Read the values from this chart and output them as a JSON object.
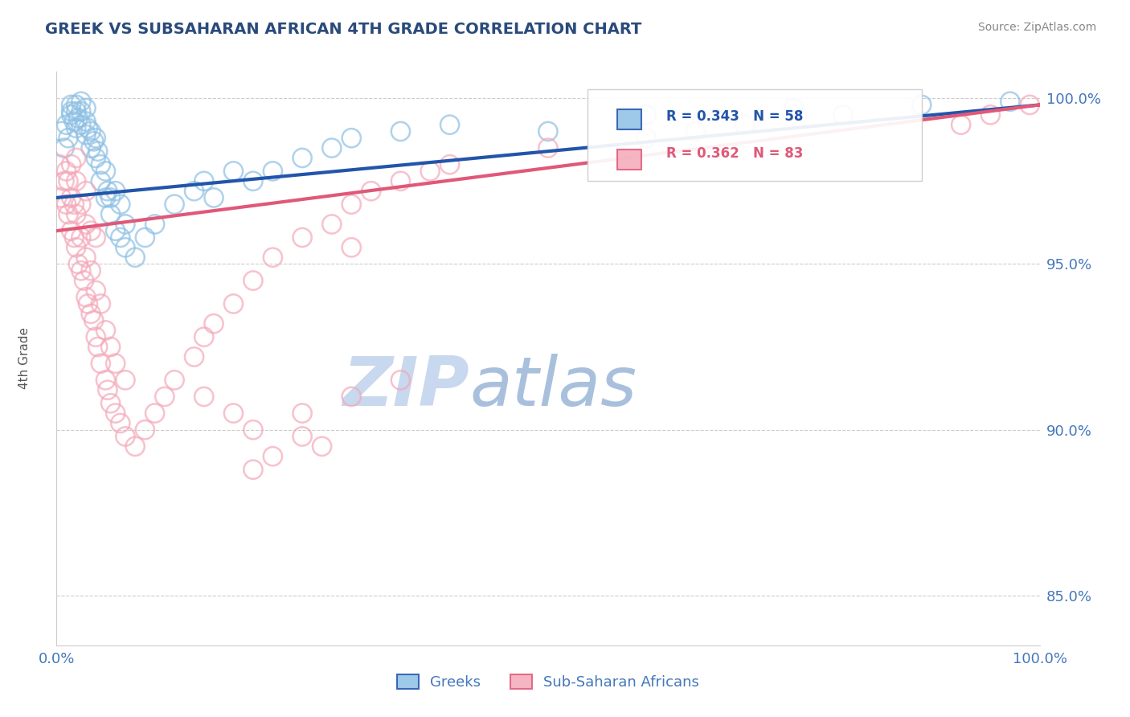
{
  "title": "GREEK VS SUBSAHARAN AFRICAN 4TH GRADE CORRELATION CHART",
  "ylabel": "4th Grade",
  "source": "Source: ZipAtlas.com",
  "xlim": [
    0.0,
    1.0
  ],
  "ylim": [
    0.835,
    1.008
  ],
  "yticks": [
    0.85,
    0.9,
    0.95,
    1.0
  ],
  "ytick_labels": [
    "85.0%",
    "90.0%",
    "95.0%",
    "100.0%"
  ],
  "xticks": [
    0.0,
    1.0
  ],
  "xtick_labels": [
    "0.0%",
    "100.0%"
  ],
  "blue_R": 0.343,
  "blue_N": 58,
  "pink_R": 0.362,
  "pink_N": 83,
  "blue_color": "#8ec0e4",
  "pink_color": "#f4a8b8",
  "blue_line_color": "#2255aa",
  "pink_line_color": "#e05878",
  "title_color": "#2a4a7a",
  "axis_color": "#4477bb",
  "tick_color": "#4477bb",
  "grid_color": "#cccccc",
  "watermark_color_zip": "#c8d8ee",
  "watermark_color_atlas": "#a8c0dc",
  "legend_text_blue": "#2255aa",
  "legend_text_pink": "#e05878",
  "source_color": "#888888",
  "blue_scatter_x": [
    0.005,
    0.008,
    0.01,
    0.012,
    0.015,
    0.015,
    0.015,
    0.018,
    0.02,
    0.02,
    0.02,
    0.022,
    0.025,
    0.025,
    0.025,
    0.03,
    0.03,
    0.03,
    0.032,
    0.035,
    0.035,
    0.038,
    0.04,
    0.04,
    0.042,
    0.045,
    0.045,
    0.05,
    0.05,
    0.052,
    0.055,
    0.055,
    0.06,
    0.06,
    0.065,
    0.065,
    0.07,
    0.07,
    0.08,
    0.09,
    0.1,
    0.12,
    0.14,
    0.15,
    0.16,
    0.18,
    0.2,
    0.22,
    0.25,
    0.28,
    0.3,
    0.35,
    0.4,
    0.5,
    0.6,
    0.75,
    0.88,
    0.97
  ],
  "blue_scatter_y": [
    0.99,
    0.985,
    0.992,
    0.988,
    0.995,
    0.998,
    0.996,
    0.993,
    0.991,
    0.996,
    0.998,
    0.994,
    0.992,
    0.996,
    0.999,
    0.989,
    0.993,
    0.997,
    0.991,
    0.985,
    0.99,
    0.987,
    0.982,
    0.988,
    0.984,
    0.98,
    0.975,
    0.97,
    0.978,
    0.972,
    0.965,
    0.97,
    0.96,
    0.972,
    0.958,
    0.968,
    0.955,
    0.962,
    0.952,
    0.958,
    0.962,
    0.968,
    0.972,
    0.975,
    0.97,
    0.978,
    0.975,
    0.978,
    0.982,
    0.985,
    0.988,
    0.99,
    0.992,
    0.99,
    0.995,
    0.997,
    0.998,
    0.999
  ],
  "pink_scatter_x": [
    0.003,
    0.005,
    0.008,
    0.01,
    0.01,
    0.012,
    0.012,
    0.015,
    0.015,
    0.015,
    0.018,
    0.018,
    0.02,
    0.02,
    0.02,
    0.02,
    0.022,
    0.025,
    0.025,
    0.025,
    0.028,
    0.03,
    0.03,
    0.03,
    0.03,
    0.032,
    0.035,
    0.035,
    0.035,
    0.038,
    0.04,
    0.04,
    0.04,
    0.042,
    0.045,
    0.045,
    0.05,
    0.05,
    0.052,
    0.055,
    0.055,
    0.06,
    0.06,
    0.065,
    0.07,
    0.07,
    0.08,
    0.09,
    0.1,
    0.11,
    0.12,
    0.14,
    0.15,
    0.16,
    0.18,
    0.2,
    0.22,
    0.25,
    0.28,
    0.3,
    0.32,
    0.35,
    0.38,
    0.4,
    0.5,
    0.6,
    0.65,
    0.7,
    0.8,
    0.3,
    0.2,
    0.22,
    0.25,
    0.27,
    0.18,
    0.15,
    0.2,
    0.25,
    0.3,
    0.35,
    0.92,
    0.95,
    0.99
  ],
  "pink_scatter_y": [
    0.98,
    0.97,
    0.975,
    0.968,
    0.978,
    0.965,
    0.975,
    0.96,
    0.97,
    0.98,
    0.958,
    0.968,
    0.955,
    0.965,
    0.975,
    0.982,
    0.95,
    0.948,
    0.958,
    0.968,
    0.945,
    0.94,
    0.952,
    0.962,
    0.972,
    0.938,
    0.935,
    0.948,
    0.96,
    0.933,
    0.928,
    0.942,
    0.958,
    0.925,
    0.92,
    0.938,
    0.915,
    0.93,
    0.912,
    0.908,
    0.925,
    0.905,
    0.92,
    0.902,
    0.898,
    0.915,
    0.895,
    0.9,
    0.905,
    0.91,
    0.915,
    0.922,
    0.928,
    0.932,
    0.938,
    0.945,
    0.952,
    0.958,
    0.962,
    0.968,
    0.972,
    0.975,
    0.978,
    0.98,
    0.985,
    0.988,
    0.99,
    0.992,
    0.995,
    0.955,
    0.888,
    0.892,
    0.898,
    0.895,
    0.905,
    0.91,
    0.9,
    0.905,
    0.91,
    0.915,
    0.992,
    0.995,
    0.998
  ],
  "background_color": "#ffffff"
}
